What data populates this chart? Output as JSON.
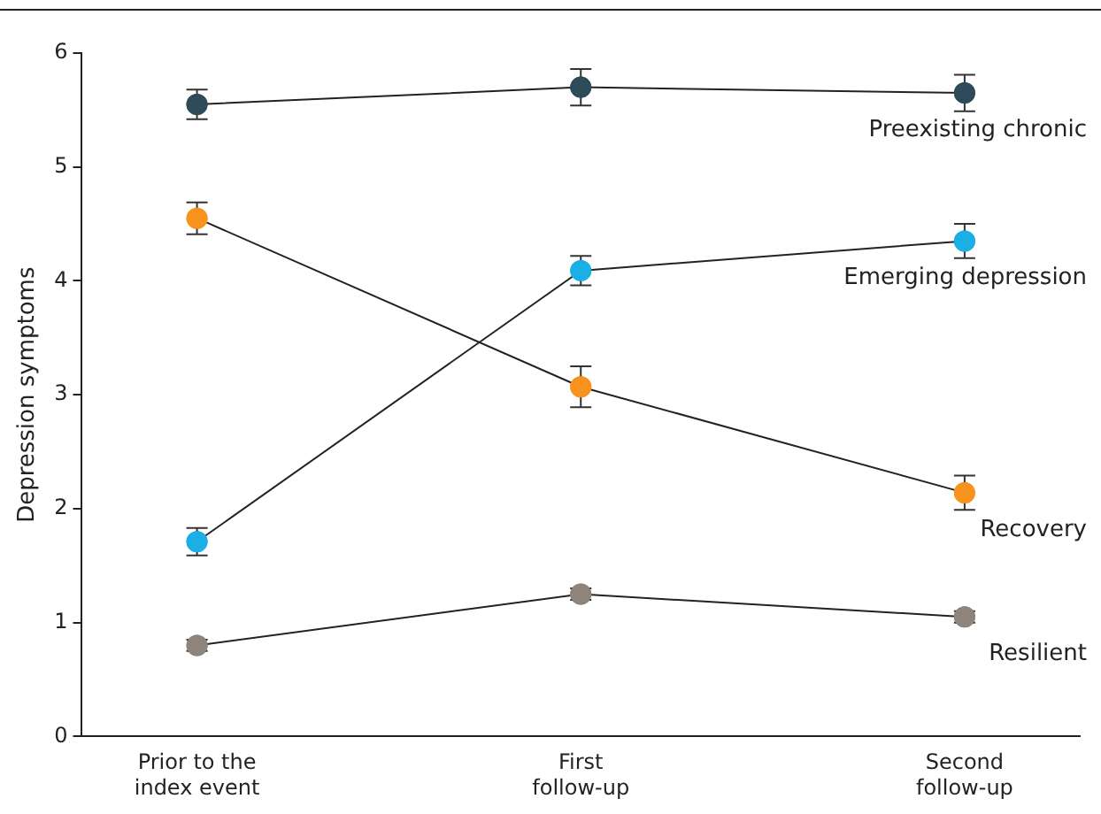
{
  "chart_data": {
    "type": "line",
    "ylabel": "Depression symptoms",
    "categories": [
      "Prior to the\nindex event",
      "First\nfollow-up",
      "Second\nfollow-up"
    ],
    "series": [
      {
        "name": "Preexisting chronic",
        "color": "#2d4b59",
        "values": [
          5.55,
          5.7,
          5.65
        ],
        "errors": [
          0.13,
          0.16,
          0.16
        ]
      },
      {
        "name": "Emerging depression",
        "color": "#1bafe6",
        "values": [
          1.71,
          4.09,
          4.35
        ],
        "errors": [
          0.12,
          0.13,
          0.15
        ]
      },
      {
        "name": "Recovery",
        "color": "#f7931e",
        "values": [
          4.55,
          3.07,
          2.14
        ],
        "errors": [
          0.14,
          0.18,
          0.15
        ]
      },
      {
        "name": "Resilient",
        "color": "#8e847b",
        "values": [
          0.8,
          1.25,
          1.05
        ],
        "errors": [
          0.05,
          0.05,
          0.05
        ]
      }
    ],
    "ylim": [
      0,
      6
    ],
    "yticks": [
      0,
      1,
      2,
      3,
      4,
      5,
      6
    ],
    "grid": false,
    "legend": false,
    "marker": "circle",
    "line_style": "solid"
  }
}
